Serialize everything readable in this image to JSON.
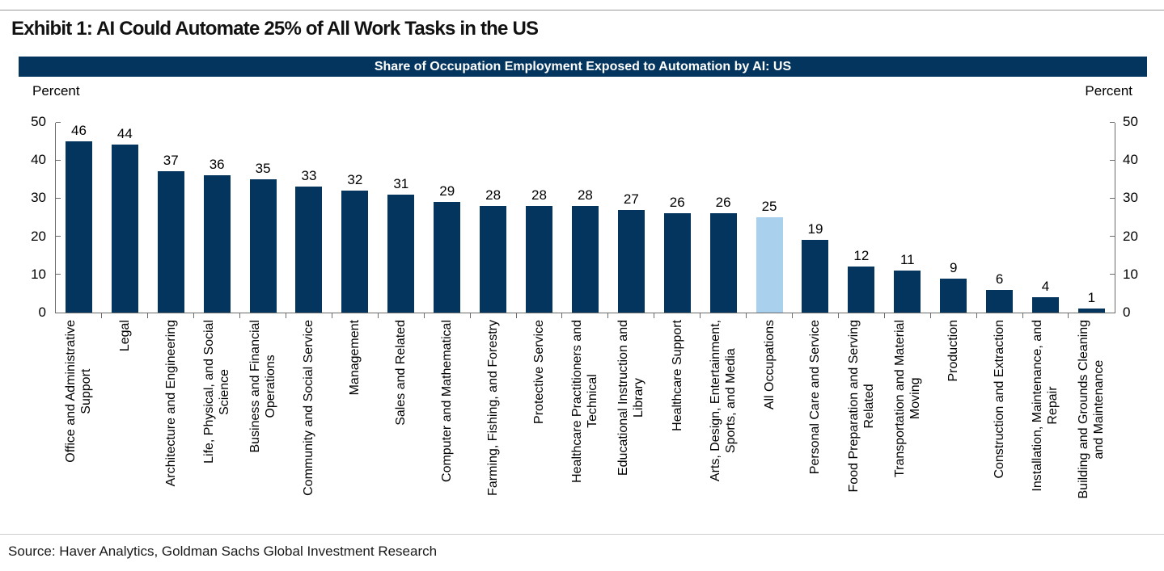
{
  "page": {
    "exhibit_title": "Exhibit 1: AI Could Automate 25% of All Work Tasks in the US",
    "source_note": "Source: Haver Analytics, Goldman Sachs Global Investment Research"
  },
  "chart_data": {
    "type": "bar",
    "title": "Share of Occupation Employment Exposed to Automation by AI: US",
    "unit_label_left": "Percent",
    "unit_label_right": "Percent",
    "ylim": [
      0,
      50
    ],
    "yticks": [
      0,
      10,
      20,
      30,
      40,
      50
    ],
    "grid": false,
    "legend": "none",
    "bar_color": "#03355E",
    "highlight_color": "#A9D1EE",
    "highlight_category": "All Occupations",
    "categories": [
      "Office and Administrative Support",
      "Legal",
      "Architecture and Engineering",
      "Life, Physical, and Social Science",
      "Business and Financial Operations",
      "Community and Social Service",
      "Management",
      "Sales and Related",
      "Computer and Mathematical",
      "Farming, Fishing, and Forestry",
      "Protective Service",
      "Healthcare Practitioners and Technical",
      "Educational Instruction and Library",
      "Healthcare Support",
      "Arts, Design, Entertainment, Sports, and Media",
      "All Occupations",
      "Personal Care and Service",
      "Food Preparation and Serving Related",
      "Transportation and Material Moving",
      "Production",
      "Construction and Extraction",
      "Installation, Maintenance, and Repair",
      "Building and Grounds Cleaning and Maintenance"
    ],
    "wrapped_labels": [
      "Office and Administrative\nSupport",
      "Legal",
      "Architecture and Engineering",
      "Life, Physical, and Social\nScience",
      "Business and Financial\nOperations",
      "Community and Social Service",
      "Management",
      "Sales and Related",
      "Computer and Mathematical",
      "Farming, Fishing, and Forestry",
      "Protective Service",
      "Healthcare Practitioners and\nTechnical",
      "Educational Instruction and\nLibrary",
      "Healthcare Support",
      "Arts, Design, Entertainment,\nSports, and Media",
      "All Occupations",
      "Personal Care and Service",
      "Food Preparation and Serving\nRelated",
      "Transportation and Material\nMoving",
      "Production",
      "Construction and Extraction",
      "Installation, Maintenance, and\nRepair",
      "Building and Grounds Cleaning\nand Maintenance"
    ],
    "values": [
      46,
      44,
      37,
      36,
      35,
      33,
      32,
      31,
      29,
      28,
      28,
      28,
      27,
      26,
      26,
      25,
      19,
      12,
      11,
      9,
      6,
      4,
      1
    ]
  }
}
